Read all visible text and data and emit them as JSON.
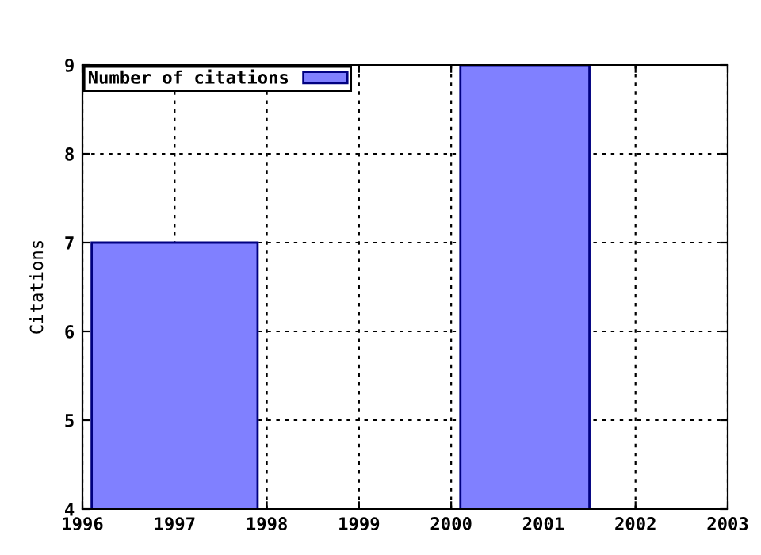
{
  "chart_data": {
    "type": "histogram",
    "ylabel": "Citations",
    "bins": [
      1996.1,
      1997.9,
      2000.1,
      2001.5
    ],
    "series": [
      {
        "name": "Number of citations",
        "color": "#8080ff",
        "values": [
          7,
          null,
          9
        ]
      }
    ],
    "xlim": [
      1996,
      2003
    ],
    "xticks": [
      1996,
      1997,
      1998,
      1999,
      2000,
      2001,
      2002,
      2003
    ],
    "ylim": [
      4,
      9
    ],
    "yticks": [
      4,
      5,
      6,
      7,
      8,
      9
    ],
    "grid": true,
    "legend": "top left"
  }
}
